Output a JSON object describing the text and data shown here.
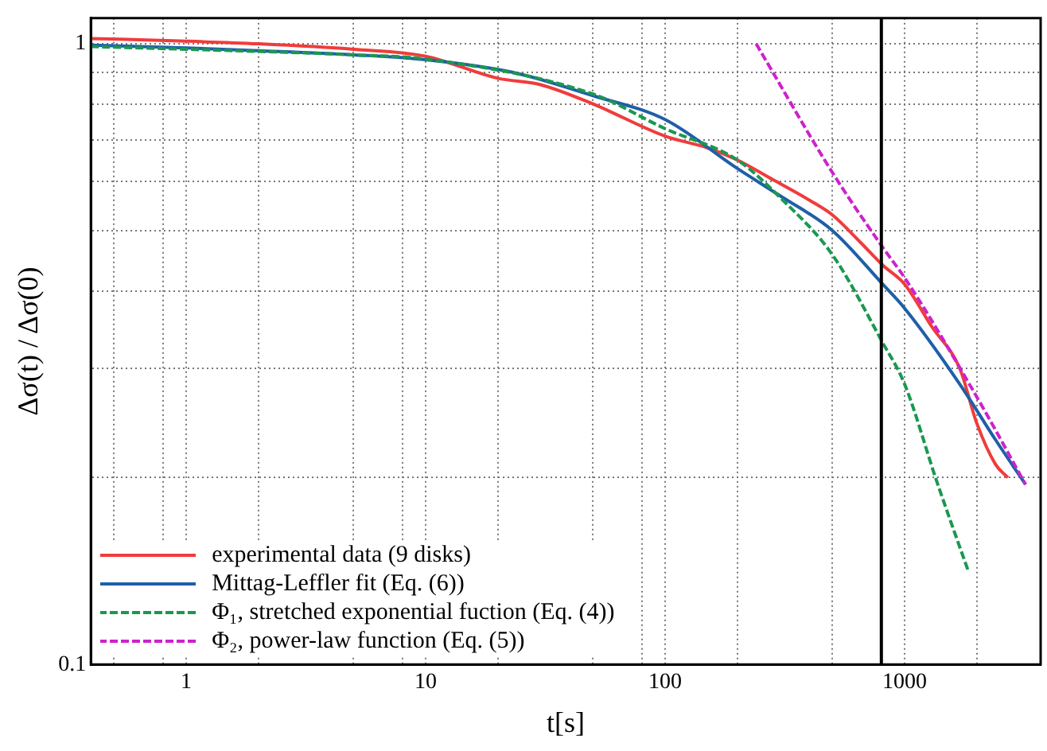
{
  "chart_data": {
    "type": "line",
    "xlabel": "t[s]",
    "ylabel": "Δσ(t) / Δσ(0)",
    "log": "xy",
    "grid": true,
    "legend": "bottom left",
    "marker": "none",
    "xlim": [
      0.4,
      3700
    ],
    "ylim": [
      0.1,
      1.1
    ],
    "xticks": [
      {
        "value": 0.5,
        "label": null
      },
      {
        "value": 0.8,
        "label": null
      },
      1,
      {
        "value": 2,
        "label": null
      },
      {
        "value": 5,
        "label": null
      },
      {
        "value": 8,
        "label": null
      },
      10,
      {
        "value": 20,
        "label": null
      },
      {
        "value": 50,
        "label": null
      },
      {
        "value": 80,
        "label": null
      },
      100,
      {
        "value": 200,
        "label": null
      },
      {
        "value": 500,
        "label": null
      },
      {
        "value": 800,
        "label": null
      },
      1000,
      {
        "value": 2000,
        "label": null
      }
    ],
    "yticks": [
      0.1,
      {
        "value": 0.2,
        "label": null
      },
      {
        "value": 0.3,
        "label": null
      },
      {
        "value": 0.4,
        "label": null
      },
      {
        "value": 0.5,
        "label": null
      },
      {
        "value": 0.6,
        "label": null
      },
      {
        "value": 0.7,
        "label": null
      },
      {
        "value": 0.8,
        "label": null
      },
      {
        "value": 0.9,
        "label": null
      },
      1
    ],
    "ref_lines": [
      {
        "axis": "x",
        "value": 800,
        "color": "#000000"
      }
    ],
    "series": [
      {
        "name": "experimental data (9 disks)",
        "color": "#f03c3c",
        "line_style": "solid",
        "x": [
          0.4,
          1,
          2,
          5,
          10,
          20,
          30,
          50,
          100,
          150,
          200,
          280,
          400,
          500,
          650,
          810,
          1000,
          1300,
          1700,
          2000,
          2400,
          2700
        ],
        "values": [
          1.02,
          1.01,
          1.0,
          0.98,
          0.955,
          0.88,
          0.86,
          0.8,
          0.71,
          0.68,
          0.65,
          0.605,
          0.56,
          0.53,
          0.48,
          0.44,
          0.41,
          0.35,
          0.3,
          0.245,
          0.21,
          0.2
        ]
      },
      {
        "name": "Mittag-Leffler fit (Eq. (6))",
        "color": "#1f5fa8",
        "line_style": "solid",
        "x": [
          0.4,
          1,
          2,
          5,
          10,
          23,
          50,
          100,
          200,
          300,
          500,
          810,
          1000,
          1700,
          2400,
          3200
        ],
        "values": [
          0.995,
          0.985,
          0.975,
          0.96,
          0.943,
          0.9,
          0.825,
          0.755,
          0.63,
          0.57,
          0.5,
          0.41,
          0.375,
          0.283,
          0.23,
          0.195
        ]
      },
      {
        "name": "Φ₁, stretched exponential fuction (Eq. (4))",
        "color": "#1a9850",
        "line_style": "dashed",
        "x": [
          0.4,
          1,
          5,
          10,
          50,
          100,
          200,
          310,
          500,
          810,
          1000,
          1370,
          1850
        ],
        "values": [
          0.99,
          0.98,
          0.96,
          0.945,
          0.83,
          0.73,
          0.65,
          0.56,
          0.457,
          0.33,
          0.283,
          0.196,
          0.141
        ]
      },
      {
        "name": "Φ₂, power-law function (Eq. (5))",
        "color": "#cc22cc",
        "line_style": "dashed",
        "x": [
          240,
          500,
          810,
          1000,
          2000,
          3200
        ],
        "values": [
          1.0,
          0.62,
          0.47,
          0.42,
          0.27,
          0.195
        ]
      }
    ]
  }
}
